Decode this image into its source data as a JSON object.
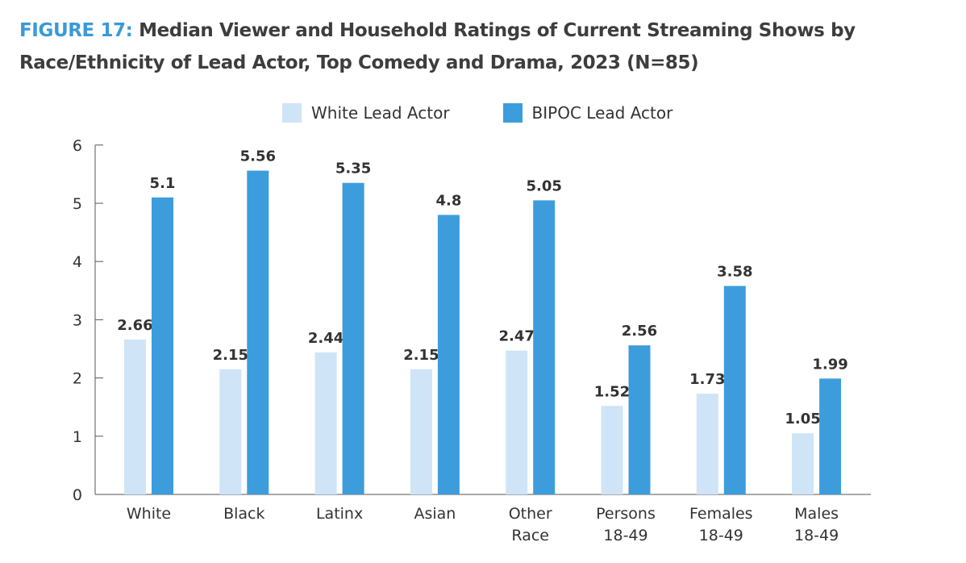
{
  "figure": {
    "label": "FIGURE 17:",
    "title": "Median Viewer and Household Ratings of Current Streaming Shows by Race/Ethnicity of Lead Actor, Top Comedy and Drama, 2023 (N=85)"
  },
  "colors": {
    "title_label": "#3a9ad8",
    "title_text": "#3d3d3d",
    "white_lead": "#cfe4f6",
    "bipoc_lead": "#3d9ddc",
    "axis": "#555555",
    "text": "#333333"
  },
  "legend": {
    "position": "top-center",
    "items": [
      {
        "label": "White Lead Actor",
        "color": "#cfe4f6"
      },
      {
        "label": "BIPOC Lead Actor",
        "color": "#3d9ddc"
      }
    ]
  },
  "chart_data": {
    "type": "bar",
    "title": "",
    "xlabel": "",
    "ylabel": "",
    "ylim": [
      0,
      6
    ],
    "yticks": [
      0,
      1,
      2,
      3,
      4,
      5,
      6
    ],
    "grid": false,
    "categories": [
      [
        "White"
      ],
      [
        "Black"
      ],
      [
        "Latinx"
      ],
      [
        "Asian"
      ],
      [
        "Other",
        "Race"
      ],
      [
        "Persons",
        "18-49"
      ],
      [
        "Females",
        "18-49"
      ],
      [
        "Males",
        "18-49"
      ]
    ],
    "series": [
      {
        "name": "White Lead Actor",
        "color": "#cfe4f6",
        "values": [
          2.66,
          2.15,
          2.44,
          2.15,
          2.47,
          1.52,
          1.73,
          1.05
        ],
        "labels": [
          "2.66",
          "2.15",
          "2.44",
          "2.15",
          "2.47",
          "1.52",
          "1.73",
          "1.05"
        ]
      },
      {
        "name": "BIPOC Lead Actor",
        "color": "#3d9ddc",
        "values": [
          5.1,
          5.56,
          5.35,
          4.8,
          5.05,
          2.56,
          3.58,
          1.99
        ],
        "labels": [
          "5.1",
          "5.56",
          "5.35",
          "4.8",
          "5.05",
          "2.56",
          "3.58",
          "1.99"
        ]
      }
    ]
  }
}
